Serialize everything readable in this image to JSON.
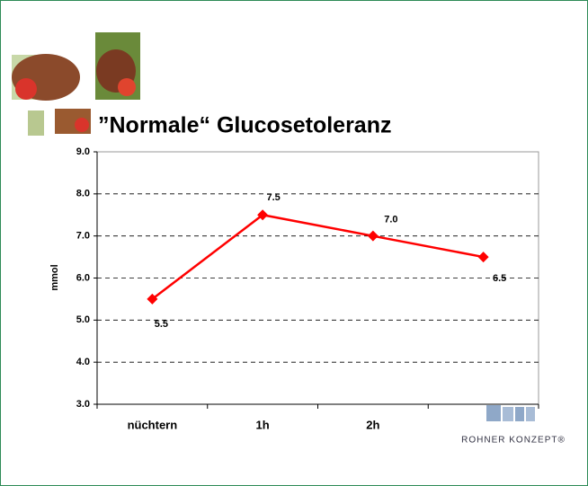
{
  "chart_data": {
    "type": "line",
    "title": "”Normale“ Glucosetoleranz",
    "y_label": "mmol",
    "categories": [
      "nüchtern",
      "1h",
      "2h",
      null
    ],
    "series": [
      {
        "name": null,
        "color": "#ff0000",
        "values": [
          5.5,
          7.5,
          7.0,
          6.5
        ],
        "value_labels": [
          "5.5",
          "7.5",
          "7.0",
          "6.5"
        ]
      }
    ],
    "ylim": [
      3,
      9
    ],
    "yticks": [
      {
        "value": 3,
        "label": "3.0"
      },
      {
        "value": 4,
        "label": "4.0"
      },
      {
        "value": 5,
        "label": "5.0"
      },
      {
        "value": 6,
        "label": "6.0"
      },
      {
        "value": 7,
        "label": "7.0"
      },
      {
        "value": 8,
        "label": "8.0"
      },
      {
        "value": 9,
        "label": "9.0"
      }
    ],
    "grid": true
  },
  "logo": {
    "text": "ROHNER KONZEPT®"
  }
}
